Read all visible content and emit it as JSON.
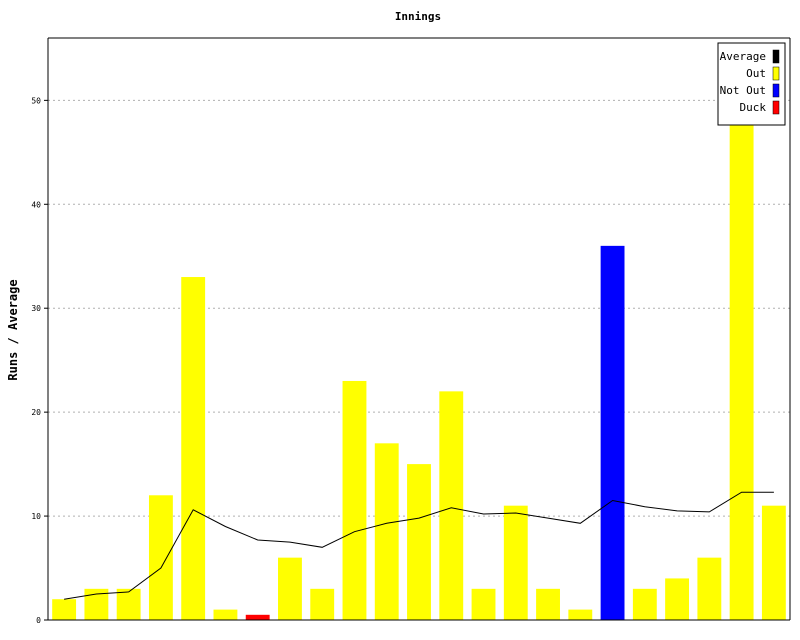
{
  "chart_data": {
    "type": "bar",
    "title": "Innings",
    "xlabel": "",
    "ylabel": "Runs / Average",
    "ylim": [
      0,
      56
    ],
    "yticks": [
      0,
      10,
      20,
      30,
      40,
      50
    ],
    "grid": true,
    "legend_position": "top-right",
    "legend": [
      {
        "label": "Average",
        "color": "#000000"
      },
      {
        "label": "Out",
        "color": "#ffff00"
      },
      {
        "label": "Not Out",
        "color": "#0000ff"
      },
      {
        "label": "Duck",
        "color": "#ff0000"
      }
    ],
    "series": [
      {
        "kind": "bar",
        "values": [
          2,
          3,
          3,
          12,
          33,
          1,
          0.5,
          6,
          3,
          23,
          17,
          15,
          22,
          3,
          11,
          3,
          1,
          36,
          3,
          4,
          6,
          48,
          11
        ],
        "status": [
          "Out",
          "Out",
          "Out",
          "Out",
          "Out",
          "Out",
          "Duck",
          "Out",
          "Out",
          "Out",
          "Out",
          "Out",
          "Out",
          "Out",
          "Out",
          "Out",
          "Out",
          "Not Out",
          "Out",
          "Out",
          "Out",
          "Out",
          "Out"
        ]
      },
      {
        "kind": "line",
        "name": "Average",
        "values": [
          2,
          2.5,
          2.7,
          5,
          10.6,
          9,
          7.7,
          7.5,
          7,
          8.5,
          9.3,
          9.8,
          10.8,
          10.2,
          10.3,
          9.8,
          9.3,
          11.5,
          10.9,
          10.5,
          10.4,
          12.3,
          12.3
        ]
      }
    ]
  }
}
